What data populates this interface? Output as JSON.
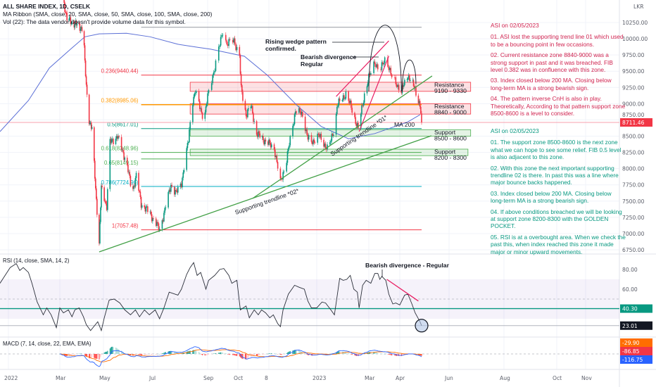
{
  "header": {
    "symbol_line": "ALL SHARE INDEX, 1D, CSELK",
    "ma_ribbon_line": "MA Ribbon (SMA, close, 20, SMA, close, 50, SMA, close, 100, SMA, close, 200)",
    "volume_line": "Vol (22): The data vendor doesn't provide volume data for this symbol."
  },
  "currency": "LKR",
  "colors": {
    "up": "#089981",
    "down": "#f23645",
    "ma200": "#5b6fd6",
    "trendline": "#43a047",
    "wedge": "#e91e63",
    "bearish_note": "#d0234f",
    "bullish_note": "#089981"
  },
  "notes_bearish": {
    "heading": "ASI on 02/05/2023",
    "items": [
      "01. ASI lost the supporting trend line 01 which used to be a bouncing point in few occasions.",
      "02. Current resistance zone 8840-9000 was a strong support in past and it was breached. FIB level 0.382 was in confluence with this zone.",
      "03. Index closed below 200 MA. Closing below long-term MA is a strong bearish sign.",
      "04. The pattern inverse CnH is also in play. Theoretically, According to that pattern support zone 8500-8600 is a level to consider."
    ]
  },
  "notes_bullish": {
    "heading": "ASI on 02/05/2023",
    "items": [
      "01. The support zone 8500-8600 is the next zone what we can hope to see some relief. FIB 0.5 level is also adjacent to this zone.",
      "02. With this zone the next important supporting trendline 02 is there. In past this was a line where major bounce backs happened.",
      "03. Index closed below 200 MA. Closing below long-term MA is a strong bearish sign.",
      "04. If above conditions breached we will be looking at support zone 8200-8300 with the GOLDEN POCKET.",
      "05. RSI is at a overbought area. When we check the past this, when index reached this zone it made major or minor upward movements."
    ]
  },
  "chart_data": {
    "type": "candlestick",
    "price_axis": {
      "ticks": [
        "10250.00",
        "10000.00",
        "9750.00",
        "9500.00",
        "9250.00",
        "9000.00",
        "8750.00",
        "8500.00",
        "8250.00",
        "8000.00",
        "7750.00",
        "7500.00",
        "7250.00",
        "7000.00",
        "6750.00"
      ],
      "range": [
        6750,
        10300
      ]
    },
    "last_price": {
      "value": 8711.46,
      "label": "8711.46",
      "color": "#f23645"
    },
    "time_axis": [
      {
        "label": "2022",
        "date": "2022-01-01"
      },
      {
        "label": "Mar",
        "date": "2022-03-01"
      },
      {
        "label": "May",
        "date": "2022-05-01"
      },
      {
        "label": "Jul",
        "date": "2022-07-01"
      },
      {
        "label": "Sep",
        "date": "2022-09-01"
      },
      {
        "label": "Oct",
        "date": "2022-10-01"
      },
      {
        "label": "8",
        "date": "2022-11-08"
      },
      {
        "label": "2023",
        "date": "2023-01-01"
      },
      {
        "label": "Mar",
        "date": "2023-03-01"
      },
      {
        "label": "Apr",
        "date": "2023-04-01"
      },
      {
        "label": "Jun",
        "date": "2023-06-01"
      },
      {
        "label": "Aug",
        "date": "2023-08-01"
      },
      {
        "label": "Oct",
        "date": "2023-10-01"
      },
      {
        "label": "Nov",
        "date": "2023-11-01"
      }
    ],
    "close_path": [
      [
        "2022-03-01",
        10900
      ],
      [
        "2022-03-11",
        10300
      ],
      [
        "2022-04-03",
        10150
      ],
      [
        "2022-04-05",
        9600
      ],
      [
        "2022-04-10",
        8800
      ],
      [
        "2022-04-15",
        8600
      ],
      [
        "2022-04-20",
        7700
      ],
      [
        "2022-04-25",
        6850
      ],
      [
        "2022-04-28",
        7700
      ],
      [
        "2022-05-01",
        7600
      ],
      [
        "2022-05-05",
        7420
      ],
      [
        "2022-05-09",
        8400
      ],
      [
        "2022-05-18",
        8500
      ],
      [
        "2022-05-29",
        8100
      ],
      [
        "2022-06-05",
        7640
      ],
      [
        "2022-06-10",
        7890
      ],
      [
        "2022-06-16",
        7460
      ],
      [
        "2022-06-27",
        7310
      ],
      [
        "2022-07-08",
        7060
      ],
      [
        "2022-07-13",
        7310
      ],
      [
        "2022-07-21",
        7750
      ],
      [
        "2022-07-27",
        7620
      ],
      [
        "2022-08-02",
        7780
      ],
      [
        "2022-08-10",
        8430
      ],
      [
        "2022-08-14",
        9010
      ],
      [
        "2022-08-18",
        9190
      ],
      [
        "2022-08-20",
        9080
      ],
      [
        "2022-08-28",
        8755
      ],
      [
        "2022-09-02",
        9190
      ],
      [
        "2022-09-09",
        9620
      ],
      [
        "2022-09-16",
        10130
      ],
      [
        "2022-09-20",
        9915
      ],
      [
        "2022-09-27",
        9980
      ],
      [
        "2022-10-03",
        9730
      ],
      [
        "2022-10-05",
        9220
      ],
      [
        "2022-10-11",
        8830
      ],
      [
        "2022-10-17",
        8970
      ],
      [
        "2022-10-24",
        8540
      ],
      [
        "2022-11-06",
        8400
      ],
      [
        "2022-11-14",
        8320
      ],
      [
        "2022-11-21",
        7780
      ],
      [
        "2022-11-28",
        8140
      ],
      [
        "2022-12-08",
        8900
      ],
      [
        "2022-12-16",
        8830
      ],
      [
        "2022-12-22",
        8460
      ],
      [
        "2022-12-26",
        8400
      ],
      [
        "2023-01-03",
        8510
      ],
      [
        "2023-01-14",
        8290
      ],
      [
        "2023-01-22",
        8680
      ],
      [
        "2023-01-24",
        8970
      ],
      [
        "2023-02-03",
        9155
      ],
      [
        "2023-02-09",
        8940
      ],
      [
        "2023-02-17",
        8610
      ],
      [
        "2023-02-25",
        9220
      ],
      [
        "2023-03-07",
        9650
      ],
      [
        "2023-03-12",
        9480
      ],
      [
        "2023-03-18",
        9730
      ],
      [
        "2023-03-24",
        9400
      ],
      [
        "2023-04-03",
        9190
      ],
      [
        "2023-04-11",
        9440
      ],
      [
        "2023-04-20",
        9220
      ],
      [
        "2023-04-26",
        8970
      ],
      [
        "2023-04-28",
        8711.46
      ]
    ],
    "ma200": {
      "label": "MA 200",
      "values": [
        [
          "2021-12-22",
          8570
        ],
        [
          "2022-01-24",
          9050
        ],
        [
          "2022-02-17",
          9550
        ],
        [
          "2022-03-16",
          9840
        ],
        [
          "2022-04-05",
          10030
        ],
        [
          "2022-04-25",
          10075
        ],
        [
          "2022-05-29",
          10085
        ],
        [
          "2022-06-27",
          10030
        ],
        [
          "2022-07-29",
          9915
        ],
        [
          "2022-08-20",
          9870
        ],
        [
          "2022-09-04",
          9840
        ],
        [
          "2022-10-09",
          9730
        ],
        [
          "2022-11-06",
          9440
        ],
        [
          "2022-12-10",
          8970
        ],
        [
          "2023-01-06",
          8650
        ],
        [
          "2023-02-06",
          8460
        ],
        [
          "2023-03-07",
          8540
        ],
        [
          "2023-04-11",
          8720
        ],
        [
          "2023-04-26",
          8830
        ]
      ]
    },
    "fib_levels": [
      {
        "ratio": 0,
        "price": 10176.54,
        "label": "",
        "color": "#9598a1"
      },
      {
        "ratio": 0.236,
        "price": 9440.44,
        "label": "0.236(9440.44)",
        "color": "#f23645"
      },
      {
        "ratio": 0.382,
        "price": 8985.06,
        "label": "0.382(8985.06)",
        "color": "#ff9800"
      },
      {
        "ratio": 0.5,
        "price": 8617.01,
        "label": "0.5(8617.01)",
        "color": "#089981"
      },
      {
        "ratio": 0.618,
        "price": 8248.96,
        "label": "0.618(8248.96)",
        "color": "#4caf50"
      },
      {
        "ratio": 0.65,
        "price": 8149.15,
        "label": "0.65(8149.15)",
        "color": "#4caf50"
      },
      {
        "ratio": 0.786,
        "price": 7724.96,
        "label": "0.786(7724.96)",
        "color": "#00acc1"
      },
      {
        "ratio": 1,
        "price": 7057.48,
        "label": "1(7057.48)",
        "color": "#f23645"
      }
    ],
    "fib_span": [
      "2022-06-16",
      "2023-04-28"
    ],
    "zones": [
      {
        "title": "Resistance",
        "range": "9190 - 9330",
        "low": 9190,
        "high": 9330,
        "color": "#f23645",
        "span": [
          "2022-08-12",
          "2023-06-25"
        ]
      },
      {
        "title": "Resistance",
        "range": "8840 - 9000",
        "low": 8840,
        "high": 9000,
        "color": "#f23645",
        "span": [
          "2022-08-12",
          "2023-06-25"
        ]
      },
      {
        "title": "Support",
        "range": "8500 - 8600",
        "low": 8500,
        "high": 8600,
        "color": "#4caf50",
        "span": [
          "2022-08-12",
          "2023-06-25"
        ]
      },
      {
        "title": "Support",
        "range": "8200 - 8300",
        "low": 8200,
        "high": 8300,
        "color": "#4caf50",
        "span": [
          "2022-08-12",
          "2023-06-22"
        ]
      }
    ],
    "trendlines": [
      {
        "label": "Supporting trendline *02*",
        "from": [
          "2022-04-25",
          6718
        ],
        "to": [
          "2023-05-10",
          8506
        ],
        "color": "#43a047"
      },
      {
        "label": "Supporting trendline *01*",
        "from": [
          "2022-10-19",
          7541
        ],
        "to": [
          "2023-05-11",
          9427
        ],
        "color": "#43a047"
      }
    ],
    "wedge": [
      {
        "from": [
          "2023-01-23",
          9112
        ],
        "to": [
          "2023-03-21",
          9968
        ]
      },
      {
        "from": [
          "2023-02-18",
          8571
        ],
        "to": [
          "2023-03-21",
          9733
        ]
      }
    ],
    "arcs": [
      {
        "from": [
          "2023-03-01",
          9190
        ],
        "peak": [
          "2023-03-18",
          9870
        ],
        "to": [
          "2023-04-03",
          9190
        ]
      },
      {
        "from": [
          "2023-04-04",
          9190
        ],
        "peak": [
          "2023-04-11",
          9530
        ],
        "to": [
          "2023-04-21",
          9300
        ]
      }
    ],
    "annotations": {
      "wedge_1": "Rising wedge pattern",
      "wedge_2": "confirmed.",
      "div_1": "Bearish divergence",
      "div_2": "Regular",
      "rsi_div": "Bearish divergence - Regular"
    },
    "rsi": {
      "title": "RSI (14, close, SMA, 14, 2)",
      "ticks": [
        "80.00",
        "60.00"
      ],
      "band": [
        30,
        70
      ],
      "mid": 50,
      "ma_value": 40.3,
      "ma_label": "40.30",
      "ma_color": "#089981",
      "value": 23.01,
      "value_label": "23.01",
      "values": [
        [
          "2021-12-22",
          66
        ],
        [
          "2022-01-03",
          82
        ],
        [
          "2022-01-10",
          86
        ],
        [
          "2022-01-14",
          79
        ],
        [
          "2022-01-18",
          82
        ],
        [
          "2022-01-24",
          77
        ],
        [
          "2022-01-28",
          66
        ],
        [
          "2022-02-03",
          47
        ],
        [
          "2022-02-10",
          34
        ],
        [
          "2022-02-14",
          41
        ],
        [
          "2022-02-19",
          34
        ],
        [
          "2022-02-25",
          21
        ],
        [
          "2022-03-01",
          41
        ],
        [
          "2022-03-06",
          36
        ],
        [
          "2022-03-13",
          39
        ],
        [
          "2022-03-18",
          32
        ],
        [
          "2022-03-22",
          39
        ],
        [
          "2022-03-28",
          41
        ],
        [
          "2022-04-03",
          32
        ],
        [
          "2022-04-07",
          24
        ],
        [
          "2022-04-13",
          18
        ],
        [
          "2022-04-23",
          27
        ],
        [
          "2022-04-28",
          18
        ],
        [
          "2022-05-02",
          31
        ],
        [
          "2022-05-08",
          49
        ],
        [
          "2022-05-14",
          50
        ],
        [
          "2022-05-21",
          46
        ],
        [
          "2022-05-27",
          39
        ],
        [
          "2022-06-03",
          34
        ],
        [
          "2022-06-09",
          39
        ],
        [
          "2022-06-14",
          32
        ],
        [
          "2022-06-20",
          39
        ],
        [
          "2022-06-26",
          34
        ],
        [
          "2022-07-03",
          39
        ],
        [
          "2022-07-08",
          30
        ],
        [
          "2022-07-13",
          41
        ],
        [
          "2022-07-19",
          57
        ],
        [
          "2022-07-29",
          54
        ],
        [
          "2022-08-02",
          60
        ],
        [
          "2022-08-08",
          75
        ],
        [
          "2022-08-12",
          82
        ],
        [
          "2022-08-16",
          87
        ],
        [
          "2022-08-20",
          74
        ],
        [
          "2022-08-24",
          77
        ],
        [
          "2022-08-28",
          66
        ],
        [
          "2022-08-30",
          60
        ],
        [
          "2022-09-02",
          69
        ],
        [
          "2022-09-08",
          74
        ],
        [
          "2022-09-13",
          80
        ],
        [
          "2022-09-17",
          81
        ],
        [
          "2022-09-22",
          74
        ],
        [
          "2022-09-25",
          66
        ],
        [
          "2022-09-30",
          69
        ],
        [
          "2022-10-04",
          39
        ],
        [
          "2022-10-11",
          43
        ],
        [
          "2022-10-15",
          31
        ],
        [
          "2022-10-21",
          39
        ],
        [
          "2022-10-26",
          34
        ],
        [
          "2022-10-30",
          39
        ],
        [
          "2022-11-04",
          36
        ],
        [
          "2022-11-09",
          31
        ],
        [
          "2022-11-13",
          34
        ],
        [
          "2022-11-18",
          25
        ],
        [
          "2022-11-21",
          22
        ],
        [
          "2022-11-24",
          39
        ],
        [
          "2022-11-30",
          55
        ],
        [
          "2022-12-07",
          64
        ],
        [
          "2022-12-12",
          62
        ],
        [
          "2022-12-18",
          60
        ],
        [
          "2022-12-22",
          48
        ],
        [
          "2022-12-26",
          41
        ],
        [
          "2023-01-01",
          41
        ],
        [
          "2023-01-07",
          47
        ],
        [
          "2023-01-11",
          46
        ],
        [
          "2023-01-17",
          39
        ],
        [
          "2023-01-21",
          34
        ],
        [
          "2023-01-23",
          46
        ],
        [
          "2023-01-27",
          71
        ],
        [
          "2023-01-31",
          69
        ],
        [
          "2023-02-04",
          70
        ],
        [
          "2023-02-08",
          74
        ],
        [
          "2023-02-12",
          60
        ],
        [
          "2023-02-16",
          57
        ],
        [
          "2023-02-18",
          41
        ],
        [
          "2023-02-22",
          64
        ],
        [
          "2023-02-26",
          69
        ],
        [
          "2023-03-03",
          66
        ],
        [
          "2023-03-07",
          76
        ],
        [
          "2023-03-10",
          76
        ],
        [
          "2023-03-12",
          70
        ],
        [
          "2023-03-14",
          73
        ],
        [
          "2023-03-18",
          69
        ],
        [
          "2023-03-21",
          55
        ],
        [
          "2023-03-25",
          45
        ],
        [
          "2023-03-28",
          46
        ],
        [
          "2023-04-01",
          44
        ],
        [
          "2023-04-07",
          54
        ],
        [
          "2023-04-11",
          55
        ],
        [
          "2023-04-16",
          45
        ],
        [
          "2023-04-20",
          36
        ],
        [
          "2023-04-26",
          27
        ],
        [
          "2023-04-28",
          23.01
        ]
      ],
      "divergence_line": {
        "from": [
          "2023-03-19",
          70
        ],
        "to": [
          "2023-04-24",
          48
        ]
      }
    },
    "macd": {
      "title": "MACD (7, 14, close, 22, EMA, EMA)",
      "fast": 7,
      "slow": 14,
      "signal": 22,
      "labels": [
        {
          "text": "-29.90",
          "color": "#ff6d00"
        },
        {
          "text": "-86.85",
          "color": "#f23645"
        },
        {
          "text": "-116.75",
          "color": "#2962ff"
        }
      ]
    }
  }
}
